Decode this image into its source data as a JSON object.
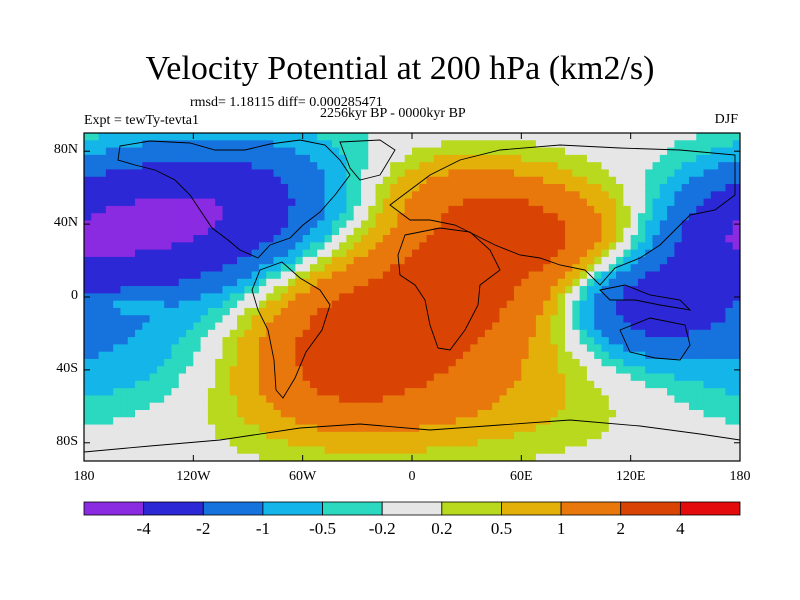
{
  "chart_data": {
    "type": "heatmap",
    "title": "Velocity Potential at 200 hPa (km2/s)",
    "stats_line": "rmsd= 1.18115 diff= 0.000285471",
    "left_label": "Expt = tewTy-tevta1",
    "center_label": "2256kyr BP - 0000kyr BP",
    "right_label": "DJF",
    "x_ticks": [
      "180",
      "120W",
      "60W",
      "0",
      "60E",
      "120E",
      "180"
    ],
    "y_ticks": [
      "80N",
      "40N",
      "0",
      "40S",
      "80S"
    ],
    "x_range": [
      -180,
      180
    ],
    "y_range": [
      -90,
      90
    ],
    "colorbar": {
      "colors": [
        "#8a2be2",
        "#2c28d6",
        "#1673de",
        "#14b5e8",
        "#2bd8c0",
        "#e6e6e6",
        "#b8d91e",
        "#e3b00a",
        "#e8780c",
        "#d94405",
        "#e30b0b"
      ],
      "labels": [
        "-4",
        "-2",
        "-1",
        "-0.5",
        "-0.2",
        "0.2",
        "0.5",
        "1",
        "2",
        "4"
      ]
    },
    "field_blobs": [
      {
        "lon": -150,
        "lat": 35,
        "value": -3,
        "spread_lon": 45,
        "spread_lat": 25
      },
      {
        "lon": -110,
        "lat": 50,
        "value": -1.8,
        "spread_lon": 40,
        "spread_lat": 22
      },
      {
        "lon": -80,
        "lat": 60,
        "value": -0.8,
        "spread_lon": 50,
        "spread_lat": 25
      },
      {
        "lon": 130,
        "lat": -5,
        "value": -2.6,
        "spread_lon": 30,
        "spread_lat": 18
      },
      {
        "lon": 175,
        "lat": 30,
        "value": -1.5,
        "spread_lon": 25,
        "spread_lat": 20
      },
      {
        "lon": -170,
        "lat": -30,
        "value": -0.8,
        "spread_lon": 40,
        "spread_lat": 25
      },
      {
        "lon": -160,
        "lat": -3,
        "value": 0.9,
        "spread_lon": 16,
        "spread_lat": 5
      },
      {
        "lon": 15,
        "lat": -5,
        "value": 2.4,
        "spread_lon": 45,
        "spread_lat": 28
      },
      {
        "lon": 60,
        "lat": 35,
        "value": 2.2,
        "spread_lon": 40,
        "spread_lat": 20
      },
      {
        "lon": -40,
        "lat": -30,
        "value": 1.9,
        "spread_lon": 35,
        "spread_lat": 25
      },
      {
        "lon": 0,
        "lat": -60,
        "value": 0.8,
        "spread_lon": 70,
        "spread_lat": 20
      },
      {
        "lon": 20,
        "lat": 60,
        "value": 0.8,
        "spread_lon": 35,
        "spread_lat": 15
      }
    ]
  }
}
